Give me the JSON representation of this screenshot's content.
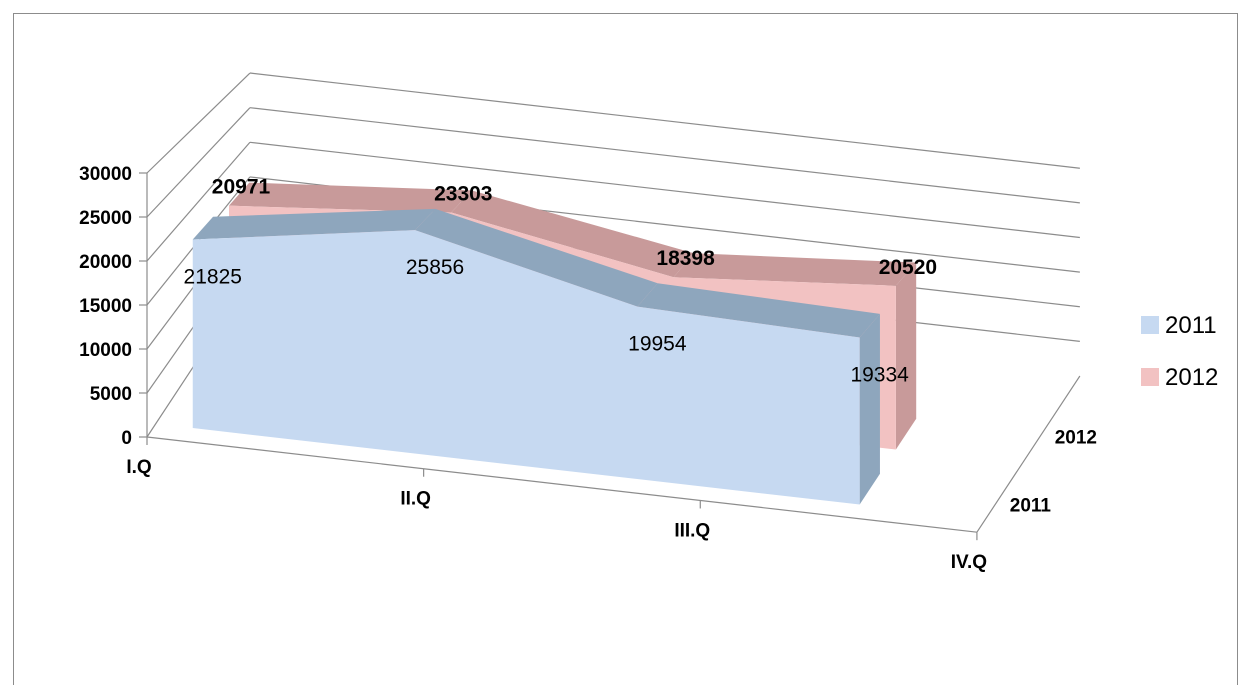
{
  "chart_data": {
    "type": "area",
    "title": "",
    "xlabel": "",
    "ylabel": "",
    "ylim": [
      0,
      30000
    ],
    "y_ticks": [
      "0",
      "5000",
      "10000",
      "15000",
      "20000",
      "25000",
      "30000"
    ],
    "categories": [
      "I.Q",
      "II.Q",
      "III.Q",
      "IV.Q"
    ],
    "depth_categories": [
      "2011",
      "2012"
    ],
    "series": [
      {
        "name": "2011",
        "values": [
          21825,
          25856,
          19954,
          19334
        ],
        "color": "#c6d9f1",
        "side_color": "#8ea6bd"
      },
      {
        "name": "2012",
        "values": [
          20971,
          23303,
          18398,
          20520
        ],
        "color": "#f2c2c2",
        "side_color": "#c89a9a"
      }
    ],
    "data_labels": {
      "2011": [
        "21825",
        "25856",
        "19954",
        "19334"
      ],
      "2012": [
        "20971",
        "23303",
        "18398",
        "20520"
      ]
    },
    "legend": {
      "position": "right",
      "entries": [
        "2011",
        "2012"
      ]
    },
    "grid": true,
    "three_d": true
  }
}
